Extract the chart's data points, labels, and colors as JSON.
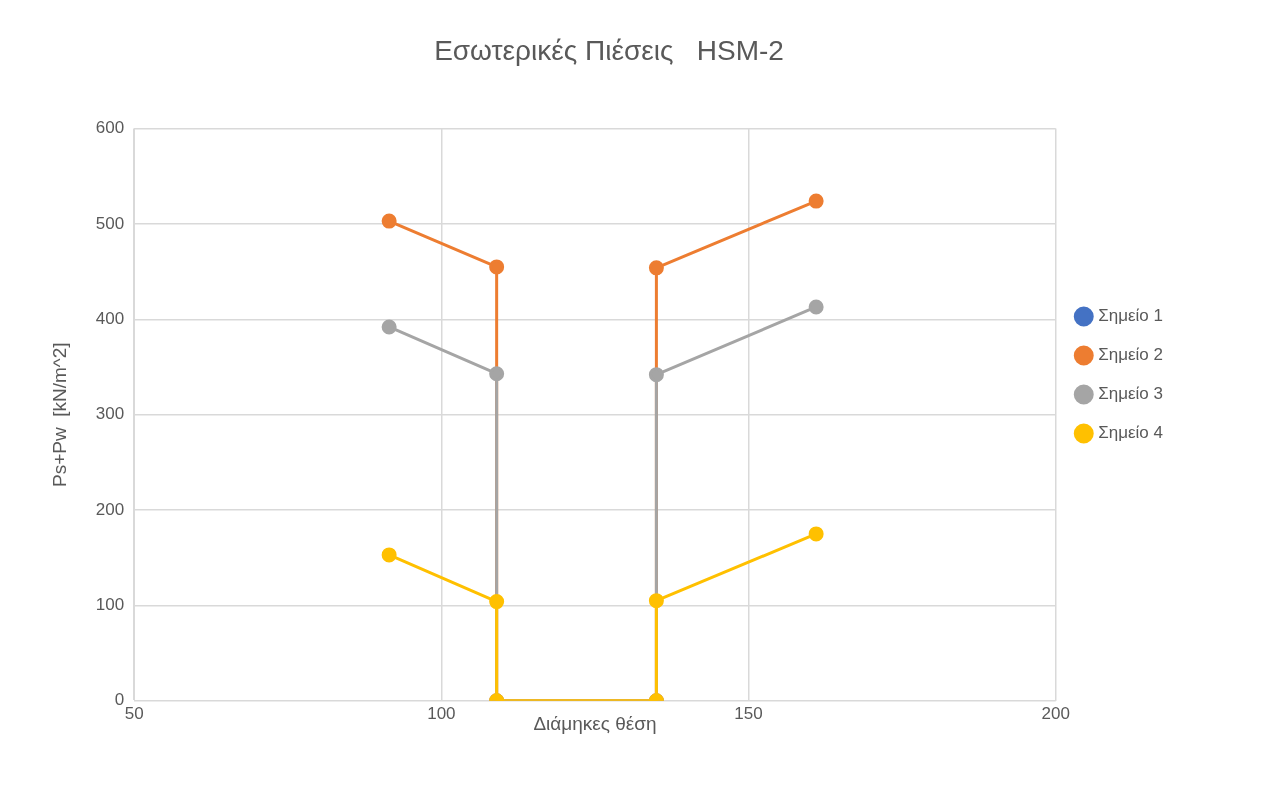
{
  "chart_data": {
    "type": "line",
    "title": "Εσωτερικές Πιέσεις   HSM-2",
    "xlabel": "Διάμηκες θέση",
    "ylabel": "Ps+Pw  [kN/m^2]",
    "x": [
      91.5,
      109,
      109,
      135,
      135,
      161
    ],
    "series": [
      {
        "name": "Σημείο 1",
        "color": "#4472c4",
        "values": [
          null,
          null,
          null,
          null,
          null,
          null
        ]
      },
      {
        "name": "Σημείο 2",
        "color": "#ed7d31",
        "values": [
          503,
          455,
          0,
          0,
          454,
          524
        ]
      },
      {
        "name": "Σημείο 3",
        "color": "#a5a5a5",
        "values": [
          392,
          343,
          0,
          0,
          342,
          413
        ]
      },
      {
        "name": "Σημείο 4",
        "color": "#ffc000",
        "values": [
          153,
          104,
          0,
          0,
          105,
          175
        ]
      }
    ],
    "xlim": [
      50,
      200
    ],
    "xticks": [
      50,
      100,
      150,
      200
    ],
    "ylim": [
      0,
      600
    ],
    "yticks": [
      0,
      100,
      200,
      300,
      400,
      500,
      600
    ],
    "grid": true,
    "legend": "right",
    "marker": "circle",
    "line_style": "solid"
  }
}
